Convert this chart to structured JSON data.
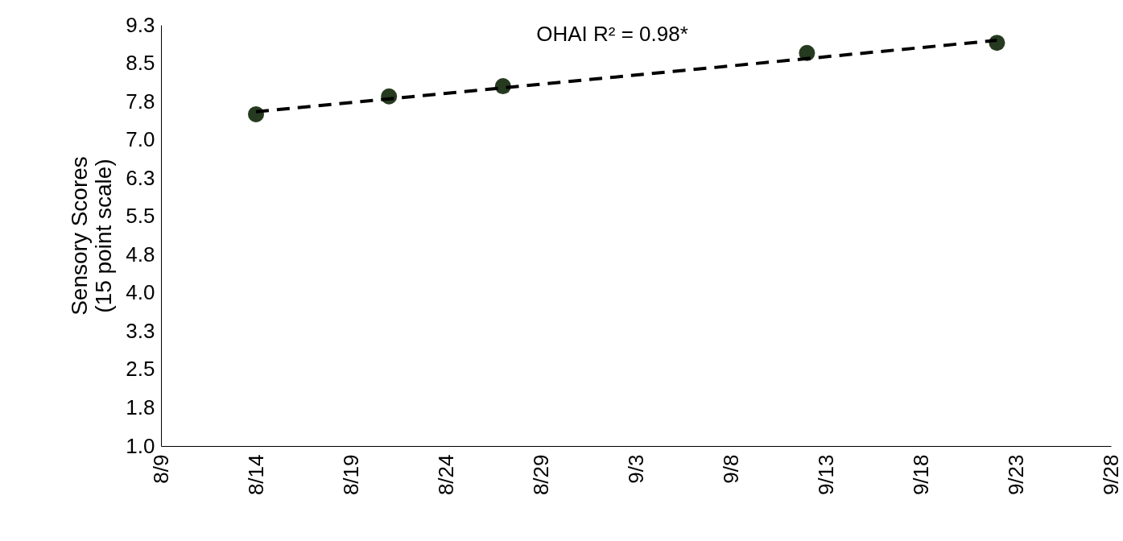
{
  "chart_data": {
    "type": "scatter",
    "ylabel": "Sensory Scores\n(15 point scale)",
    "annotations": [
      "OHAI R² = 0.98*"
    ],
    "xlim": [
      "--08-09",
      "--09-28"
    ],
    "xticks": [
      {
        "value": "--08-09",
        "label": "8/9"
      },
      {
        "value": "--08-14",
        "label": "8/14"
      },
      {
        "value": "--08-19",
        "label": "8/19"
      },
      {
        "value": "--08-24",
        "label": "8/24"
      },
      {
        "value": "--08-29",
        "label": "8/29"
      },
      {
        "value": "--09-03",
        "label": "9/3"
      },
      {
        "value": "--09-08",
        "label": "9/8"
      },
      {
        "value": "--09-13",
        "label": "9/13"
      },
      {
        "value": "--09-18",
        "label": "9/18"
      },
      {
        "value": "--09-23",
        "label": "9/23"
      },
      {
        "value": "--09-28",
        "label": "9/28"
      }
    ],
    "ylim": [
      1,
      9.25
    ],
    "yticks": [
      {
        "value": 1,
        "label": "1.0"
      },
      {
        "value": 1.75,
        "label": "1.8"
      },
      {
        "value": 2.5,
        "label": "2.5"
      },
      {
        "value": 3.25,
        "label": "3.3"
      },
      {
        "value": 4,
        "label": "4.0"
      },
      {
        "value": 4.75,
        "label": "4.8"
      },
      {
        "value": 5.5,
        "label": "5.5"
      },
      {
        "value": 6.25,
        "label": "6.3"
      },
      {
        "value": 7,
        "label": "7.0"
      },
      {
        "value": 7.75,
        "label": "7.8"
      },
      {
        "value": 8.5,
        "label": "8.5"
      },
      {
        "value": 9.25,
        "label": "9.3"
      }
    ],
    "grid": false,
    "series": [
      {
        "color": "#263a1f",
        "marker": "circle",
        "x": [
          "--08-14",
          "--08-21",
          "--08-27",
          "--09-12",
          "--09-22"
        ],
        "values": [
          7.5,
          7.85,
          8.05,
          8.7,
          8.9
        ]
      },
      {
        "type": "line",
        "color": "#000000",
        "line_style": "dashed",
        "x": [
          "--08-14",
          "--09-22"
        ],
        "values": [
          7.55,
          8.95
        ]
      }
    ]
  }
}
